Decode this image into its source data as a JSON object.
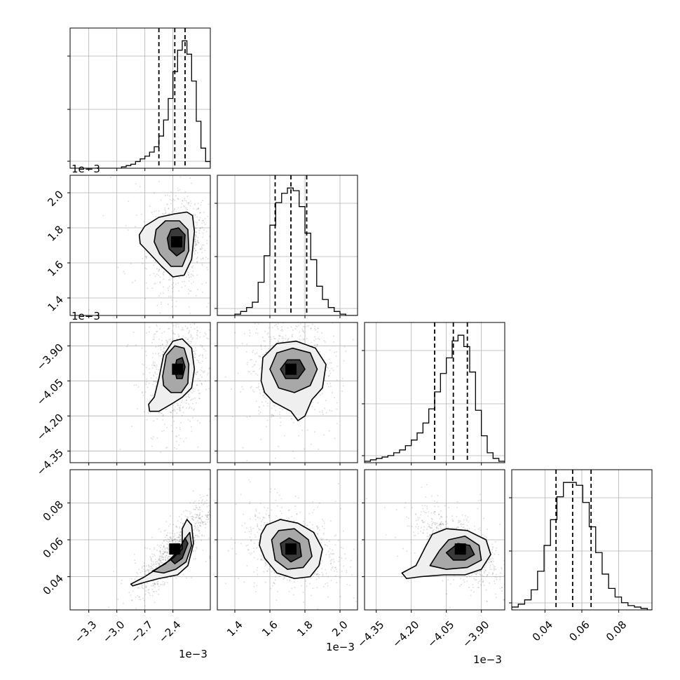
{
  "chart_data": {
    "type": "corner",
    "grid": true,
    "parameters": [
      {
        "id": "p0",
        "range": [
          -3.5,
          -2.0
        ],
        "ticks": [
          -3.3,
          -3.0,
          -2.7,
          -2.4
        ],
        "tick_labels": [
          "−3.3",
          "−3.0",
          "−2.7",
          "−2.4"
        ],
        "offset_label": "1e−3",
        "quantiles": [
          -2.55,
          -2.38,
          -2.27
        ],
        "hist": {
          "edges": [
            -3.5,
            -3.45,
            -3.4,
            -3.35,
            -3.3,
            -3.25,
            -3.2,
            -3.15,
            -3.1,
            -3.05,
            -3.0,
            -2.95,
            -2.9,
            -2.85,
            -2.8,
            -2.75,
            -2.7,
            -2.65,
            -2.6,
            -2.55,
            -2.5,
            -2.45,
            -2.4,
            -2.35,
            -2.3,
            -2.25,
            -2.2,
            -2.15,
            -2.1,
            -2.05,
            -2.0
          ],
          "counts": [
            0,
            0,
            0,
            0,
            0,
            0,
            0,
            0,
            0,
            0,
            0,
            1,
            2,
            3,
            5,
            7,
            9,
            12,
            16,
            24,
            36,
            52,
            72,
            88,
            95,
            85,
            65,
            35,
            15,
            5,
            1
          ]
        }
      },
      {
        "id": "p1",
        "range": [
          1.3,
          2.1
        ],
        "ticks": [
          1.4,
          1.6,
          1.8,
          2.0
        ],
        "tick_labels": [
          "1.4",
          "1.6",
          "1.8",
          "2.0"
        ],
        "offset_label": "1e−3",
        "quantiles": [
          1.63,
          1.72,
          1.81
        ],
        "hist": {
          "edges": [
            1.3,
            1.333,
            1.367,
            1.4,
            1.433,
            1.467,
            1.5,
            1.533,
            1.567,
            1.6,
            1.633,
            1.667,
            1.7,
            1.733,
            1.767,
            1.8,
            1.833,
            1.867,
            1.9,
            1.933,
            1.967,
            2.0,
            2.033,
            2.067,
            2.1
          ],
          "counts": [
            0,
            0,
            0,
            1,
            3,
            6,
            10,
            25,
            45,
            68,
            85,
            92,
            96,
            94,
            82,
            62,
            42,
            22,
            12,
            6,
            3,
            1,
            0,
            0
          ]
        }
      },
      {
        "id": "p2",
        "range": [
          -4.4,
          -3.8
        ],
        "ticks": [
          -4.35,
          -4.2,
          -4.05,
          -3.9
        ],
        "tick_labels": [
          "−4.35",
          "−4.20",
          "−4.05",
          "−3.90"
        ],
        "offset_label": "1e−3",
        "quantiles": [
          -4.1,
          -4.02,
          -3.96
        ],
        "hist": {
          "edges": [
            -4.4,
            -4.375,
            -4.35,
            -4.325,
            -4.3,
            -4.275,
            -4.25,
            -4.225,
            -4.2,
            -4.175,
            -4.15,
            -4.125,
            -4.1,
            -4.075,
            -4.05,
            -4.025,
            -4.0,
            -3.975,
            -3.95,
            -3.925,
            -3.9,
            -3.875,
            -3.85,
            -3.825,
            -3.8
          ],
          "counts": [
            1,
            2,
            3,
            4,
            5,
            7,
            9,
            12,
            16,
            21,
            28,
            38,
            50,
            63,
            74,
            86,
            90,
            82,
            64,
            37,
            19,
            7,
            3,
            1
          ]
        }
      },
      {
        "id": "p3",
        "range": [
          0.022,
          0.098
        ],
        "ticks": [
          0.04,
          0.06,
          0.08
        ],
        "tick_labels": [
          "0.04",
          "0.06",
          "0.08"
        ],
        "offset_label": "",
        "quantiles": [
          0.046,
          0.055,
          0.065
        ],
        "hist": {
          "edges": [
            0.022,
            0.0255,
            0.029,
            0.0325,
            0.036,
            0.0395,
            0.043,
            0.0465,
            0.05,
            0.0535,
            0.057,
            0.0605,
            0.064,
            0.0675,
            0.071,
            0.0745,
            0.078,
            0.0815,
            0.085,
            0.0885,
            0.092,
            0.0955,
            0.098
          ],
          "counts": [
            2,
            4,
            7,
            14,
            27,
            45,
            63,
            79,
            89,
            89,
            87,
            75,
            58,
            40,
            25,
            15,
            9,
            5,
            3,
            2,
            1,
            0
          ]
        }
      }
    ],
    "pairs": [
      {
        "x": "p0",
        "y": "p1",
        "mean": [
          -2.36,
          1.72
        ],
        "sd": [
          0.12,
          0.09
        ],
        "rho": 0.1,
        "contours": [
          [
            [
              -2.76,
              1.76
            ],
            [
              -2.7,
              1.81
            ],
            [
              -2.55,
              1.86
            ],
            [
              -2.38,
              1.88
            ],
            [
              -2.25,
              1.89
            ],
            [
              -2.19,
              1.87
            ],
            [
              -2.17,
              1.78
            ],
            [
              -2.2,
              1.62
            ],
            [
              -2.28,
              1.53
            ],
            [
              -2.4,
              1.52
            ],
            [
              -2.52,
              1.58
            ],
            [
              -2.66,
              1.66
            ],
            [
              -2.75,
              1.71
            ]
          ],
          [
            [
              -2.58,
              1.79
            ],
            [
              -2.48,
              1.84
            ],
            [
              -2.33,
              1.84
            ],
            [
              -2.24,
              1.79
            ],
            [
              -2.23,
              1.67
            ],
            [
              -2.3,
              1.58
            ],
            [
              -2.42,
              1.58
            ],
            [
              -2.54,
              1.65
            ],
            [
              -2.6,
              1.72
            ]
          ],
          [
            [
              -2.42,
              1.79
            ],
            [
              -2.34,
              1.8
            ],
            [
              -2.27,
              1.76
            ],
            [
              -2.28,
              1.67
            ],
            [
              -2.36,
              1.64
            ],
            [
              -2.44,
              1.68
            ],
            [
              -2.46,
              1.74
            ]
          ]
        ]
      },
      {
        "x": "p0",
        "y": "p2",
        "mean": [
          -2.35,
          -4.0
        ],
        "sd": [
          0.11,
          0.09
        ],
        "rho": 0.1,
        "contours": [
          [
            [
              -2.66,
              -4.15
            ],
            [
              -2.6,
              -4.12
            ],
            [
              -2.55,
              -4.04
            ],
            [
              -2.5,
              -3.94
            ],
            [
              -2.4,
              -3.88
            ],
            [
              -2.3,
              -3.87
            ],
            [
              -2.2,
              -3.91
            ],
            [
              -2.17,
              -4.0
            ],
            [
              -2.2,
              -4.08
            ],
            [
              -2.3,
              -4.12
            ],
            [
              -2.42,
              -4.15
            ],
            [
              -2.55,
              -4.18
            ],
            [
              -2.65,
              -4.18
            ]
          ],
          [
            [
              -2.51,
              -4.03
            ],
            [
              -2.47,
              -3.94
            ],
            [
              -2.38,
              -3.9
            ],
            [
              -2.28,
              -3.91
            ],
            [
              -2.23,
              -3.98
            ],
            [
              -2.24,
              -4.06
            ],
            [
              -2.31,
              -4.1
            ],
            [
              -2.42,
              -4.1
            ],
            [
              -2.5,
              -4.07
            ]
          ],
          [
            [
              -2.38,
              -4.0
            ],
            [
              -2.36,
              -3.96
            ],
            [
              -2.3,
              -3.95
            ],
            [
              -2.27,
              -3.99
            ],
            [
              -2.3,
              -4.04
            ],
            [
              -2.36,
              -4.04
            ]
          ]
        ]
      },
      {
        "x": "p0",
        "y": "p3",
        "mean": [
          -2.38,
          0.055
        ],
        "sd": [
          0.15,
          0.009
        ],
        "rho": 0.85,
        "contours": [
          [
            [
              -2.85,
              0.036
            ],
            [
              -2.7,
              0.04
            ],
            [
              -2.55,
              0.045
            ],
            [
              -2.4,
              0.05
            ],
            [
              -2.3,
              0.055
            ],
            [
              -2.3,
              0.066
            ],
            [
              -2.25,
              0.071
            ],
            [
              -2.2,
              0.068
            ],
            [
              -2.18,
              0.058
            ],
            [
              -2.24,
              0.046
            ],
            [
              -2.35,
              0.041
            ],
            [
              -2.55,
              0.039
            ],
            [
              -2.7,
              0.037
            ],
            [
              -2.83,
              0.035
            ]
          ],
          [
            [
              -2.62,
              0.043
            ],
            [
              -2.48,
              0.047
            ],
            [
              -2.36,
              0.053
            ],
            [
              -2.28,
              0.06
            ],
            [
              -2.22,
              0.064
            ],
            [
              -2.2,
              0.057
            ],
            [
              -2.26,
              0.048
            ],
            [
              -2.37,
              0.044
            ],
            [
              -2.5,
              0.042
            ]
          ],
          [
            [
              -2.42,
              0.049
            ],
            [
              -2.33,
              0.055
            ],
            [
              -2.27,
              0.061
            ],
            [
              -2.24,
              0.058
            ],
            [
              -2.3,
              0.05
            ],
            [
              -2.38,
              0.047
            ]
          ]
        ]
      },
      {
        "x": "p1",
        "y": "p2",
        "mean": [
          1.72,
          -4.0
        ],
        "sd": [
          0.08,
          0.08
        ],
        "rho": 0.0,
        "contours": [
          [
            [
              1.55,
              -4.05
            ],
            [
              1.56,
              -3.95
            ],
            [
              1.64,
              -3.89
            ],
            [
              1.75,
              -3.88
            ],
            [
              1.86,
              -3.91
            ],
            [
              1.92,
              -3.98
            ],
            [
              1.9,
              -4.08
            ],
            [
              1.84,
              -4.13
            ],
            [
              1.8,
              -4.2
            ],
            [
              1.76,
              -4.22
            ],
            [
              1.72,
              -4.18
            ],
            [
              1.62,
              -4.14
            ],
            [
              1.57,
              -4.1
            ]
          ],
          [
            [
              1.6,
              -4.0
            ],
            [
              1.64,
              -3.93
            ],
            [
              1.73,
              -3.91
            ],
            [
              1.83,
              -3.93
            ],
            [
              1.87,
              -4.0
            ],
            [
              1.83,
              -4.07
            ],
            [
              1.74,
              -4.1
            ],
            [
              1.65,
              -4.08
            ]
          ],
          [
            [
              1.66,
              -4.0
            ],
            [
              1.7,
              -3.96
            ],
            [
              1.77,
              -3.96
            ],
            [
              1.8,
              -4.0
            ],
            [
              1.76,
              -4.04
            ],
            [
              1.69,
              -4.04
            ]
          ]
        ]
      },
      {
        "x": "p1",
        "y": "p3",
        "mean": [
          1.72,
          0.055
        ],
        "sd": [
          0.09,
          0.007
        ],
        "rho": -0.3,
        "contours": [
          [
            [
              1.55,
              0.063
            ],
            [
              1.58,
              0.068
            ],
            [
              1.66,
              0.071
            ],
            [
              1.76,
              0.069
            ],
            [
              1.85,
              0.064
            ],
            [
              1.9,
              0.055
            ],
            [
              1.88,
              0.046
            ],
            [
              1.83,
              0.04
            ],
            [
              1.74,
              0.039
            ],
            [
              1.64,
              0.042
            ],
            [
              1.57,
              0.05
            ],
            [
              1.54,
              0.057
            ]
          ],
          [
            [
              1.61,
              0.06
            ],
            [
              1.65,
              0.065
            ],
            [
              1.74,
              0.066
            ],
            [
              1.82,
              0.06
            ],
            [
              1.84,
              0.051
            ],
            [
              1.79,
              0.045
            ],
            [
              1.7,
              0.044
            ],
            [
              1.63,
              0.049
            ]
          ],
          [
            [
              1.66,
              0.058
            ],
            [
              1.71,
              0.061
            ],
            [
              1.77,
              0.058
            ],
            [
              1.78,
              0.051
            ],
            [
              1.72,
              0.048
            ],
            [
              1.67,
              0.052
            ]
          ]
        ]
      },
      {
        "x": "p2",
        "y": "p3",
        "mean": [
          -3.99,
          0.055
        ],
        "sd": [
          0.06,
          0.007
        ],
        "rho": -0.6,
        "contours": [
          [
            [
              -4.24,
              0.042
            ],
            [
              -4.18,
              0.046
            ],
            [
              -4.14,
              0.056
            ],
            [
              -4.11,
              0.063
            ],
            [
              -4.05,
              0.066
            ],
            [
              -3.96,
              0.065
            ],
            [
              -3.88,
              0.06
            ],
            [
              -3.86,
              0.052
            ],
            [
              -3.9,
              0.044
            ],
            [
              -3.97,
              0.041
            ],
            [
              -4.06,
              0.041
            ],
            [
              -4.16,
              0.04
            ],
            [
              -4.22,
              0.039
            ]
          ],
          [
            [
              -4.12,
              0.046
            ],
            [
              -4.08,
              0.054
            ],
            [
              -4.04,
              0.06
            ],
            [
              -3.97,
              0.062
            ],
            [
              -3.91,
              0.057
            ],
            [
              -3.9,
              0.049
            ],
            [
              -3.96,
              0.045
            ],
            [
              -4.05,
              0.044
            ]
          ],
          [
            [
              -4.05,
              0.053
            ],
            [
              -4.0,
              0.058
            ],
            [
              -3.95,
              0.057
            ],
            [
              -3.93,
              0.052
            ],
            [
              -3.97,
              0.049
            ],
            [
              -4.02,
              0.049
            ]
          ]
        ]
      }
    ]
  }
}
